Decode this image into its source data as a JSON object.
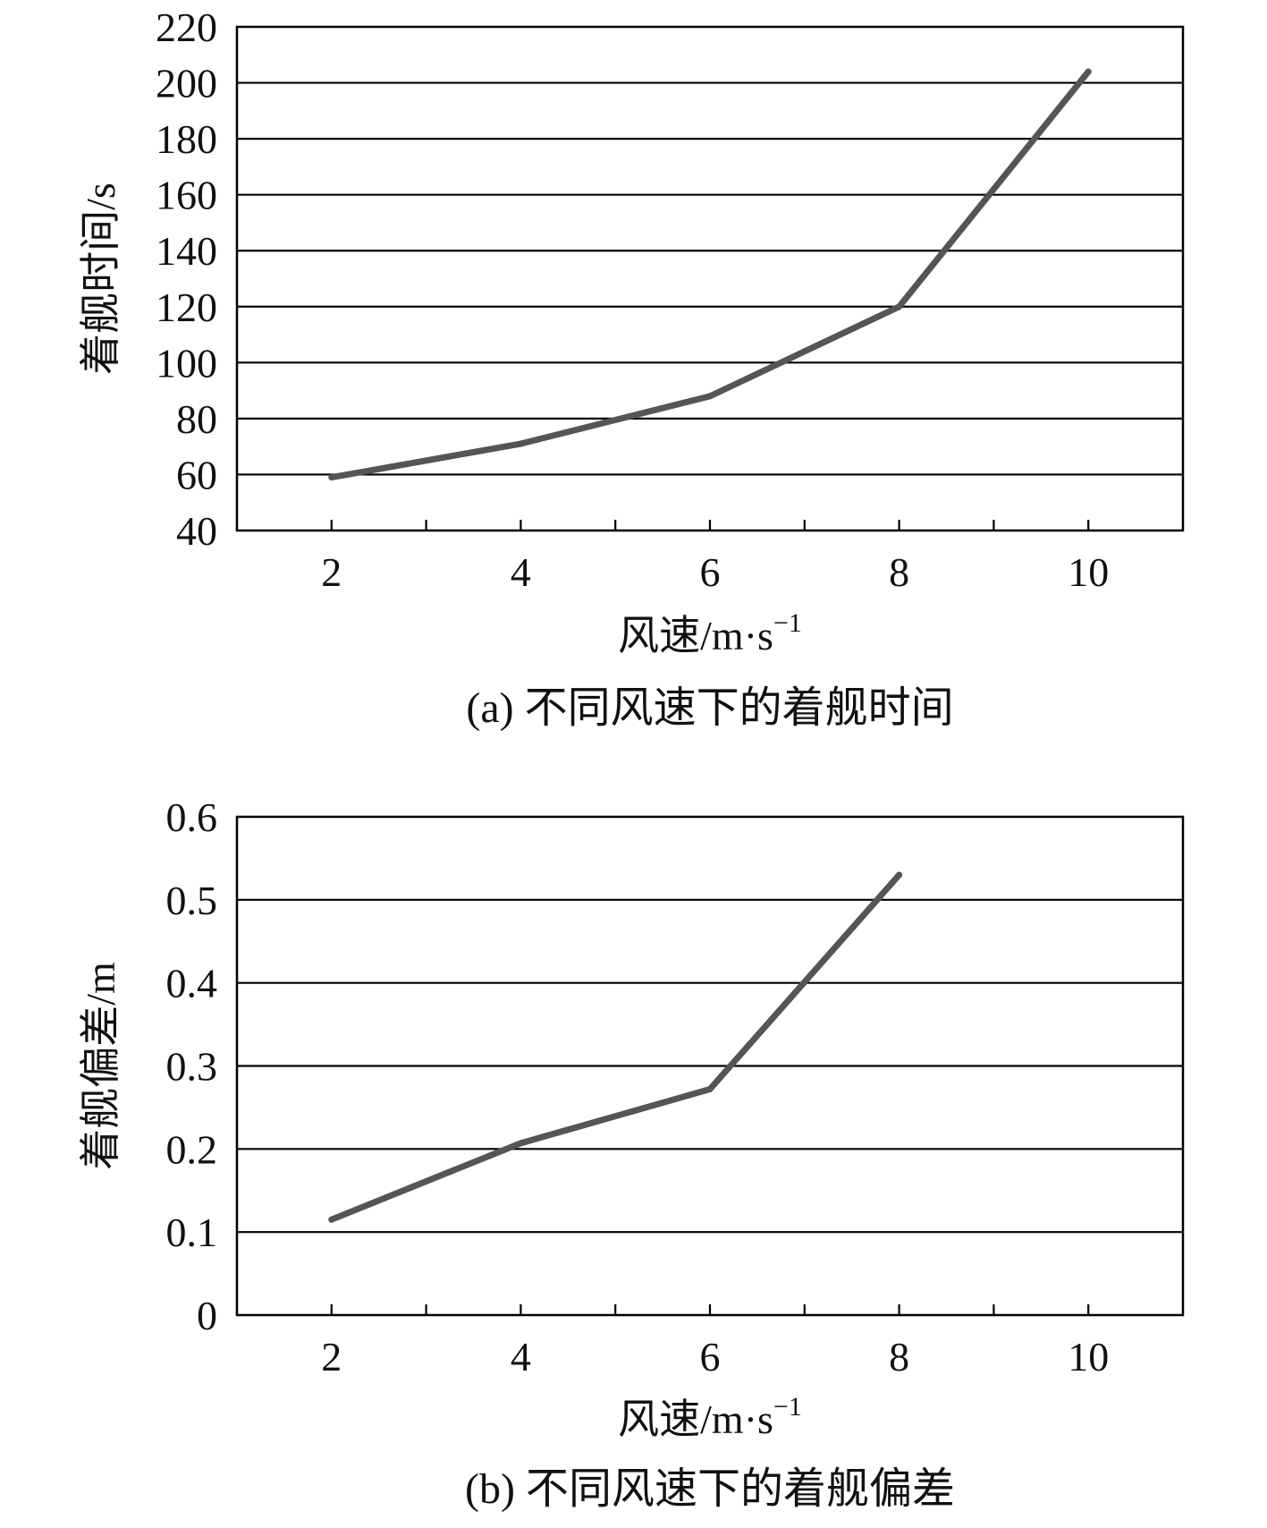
{
  "chart_data": [
    {
      "type": "line",
      "caption": "(a) 不同风速下的着舰时间",
      "xlabel": "风速/m·s",
      "xlabel_sup": "−1",
      "ylabel": "着舰时间/s",
      "x": [
        2,
        4,
        6,
        8,
        10
      ],
      "x_ticks": [
        "2",
        "4",
        "6",
        "8",
        "10"
      ],
      "xlim": [
        1,
        11
      ],
      "y_ticks": [
        "40",
        "60",
        "80",
        "100",
        "120",
        "140",
        "160",
        "180",
        "200",
        "220"
      ],
      "ylim": [
        40,
        220
      ],
      "grid": true,
      "series": [
        {
          "values": [
            59,
            71,
            88,
            120,
            204
          ]
        }
      ],
      "line_color": "#555555"
    },
    {
      "type": "line",
      "caption": "(b) 不同风速下的着舰偏差",
      "xlabel": "风速/m·s",
      "xlabel_sup": "−1",
      "ylabel": "着舰偏差/m",
      "x": [
        2,
        4,
        6,
        8
      ],
      "x_ticks": [
        "2",
        "4",
        "6",
        "8",
        "10"
      ],
      "xlim": [
        1,
        11
      ],
      "y_ticks": [
        "0",
        "0.1",
        "0.2",
        "0.3",
        "0.4",
        "0.5",
        "0.6"
      ],
      "ylim": [
        0,
        0.6
      ],
      "grid": true,
      "series": [
        {
          "values": [
            0.115,
            0.207,
            0.272,
            0.53
          ]
        }
      ],
      "line_color": "#555555"
    }
  ]
}
